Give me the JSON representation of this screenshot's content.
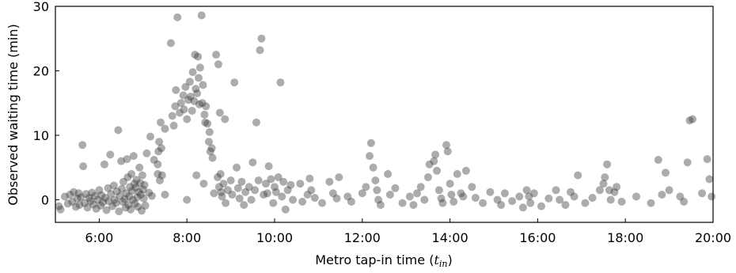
{
  "chart_data": {
    "type": "scatter",
    "title": "",
    "xlabel_prefix": "Metro tap-in time (",
    "xlabel_var": "t",
    "xlabel_sub": "in",
    "xlabel_suffix": ")",
    "ylabel": "Observed waiting time (min)",
    "xlim": [
      "5:00",
      "20:00"
    ],
    "ylim": [
      -3.5,
      30
    ],
    "x_ticks": [
      "6:00",
      "8:00",
      "10:00",
      "12:00",
      "14:00",
      "16:00",
      "18:00",
      "20:00"
    ],
    "y_ticks": [
      "0",
      "10",
      "20",
      "30"
    ],
    "grid": false,
    "legend": "none",
    "point_color": "#3a3a3a",
    "points": [
      [
        "5:05",
        -1.0
      ],
      [
        "5:07",
        -1.5
      ],
      [
        "5:13",
        0.5
      ],
      [
        "5:17",
        -0.6
      ],
      [
        "5:20",
        0.8
      ],
      [
        "5:23",
        -0.3
      ],
      [
        "5:25",
        1.2
      ],
      [
        "5:28",
        -1.1
      ],
      [
        "5:30",
        0.2
      ],
      [
        "5:32",
        1.0
      ],
      [
        "5:33",
        -0.8
      ],
      [
        "5:35",
        0.4
      ],
      [
        "5:37",
        8.5
      ],
      [
        "5:38",
        5.2
      ],
      [
        "5:40",
        -0.5
      ],
      [
        "5:42",
        0.9
      ],
      [
        "5:44",
        -1.2
      ],
      [
        "5:46",
        0.3
      ],
      [
        "5:48",
        -0.2
      ],
      [
        "5:50",
        1.1
      ],
      [
        "5:52",
        -0.7
      ],
      [
        "5:54",
        0.6
      ],
      [
        "5:56",
        -1.4
      ],
      [
        "5:58",
        0.0
      ],
      [
        "6:00",
        1.5
      ],
      [
        "6:02",
        -0.9
      ],
      [
        "6:03",
        0.7
      ],
      [
        "6:05",
        -0.4
      ],
      [
        "6:07",
        5.5
      ],
      [
        "6:08",
        0.3
      ],
      [
        "6:10",
        -1.6
      ],
      [
        "6:12",
        1.8
      ],
      [
        "6:13",
        -0.2
      ],
      [
        "6:15",
        7.0
      ],
      [
        "6:16",
        0.9
      ],
      [
        "6:18",
        -1.0
      ],
      [
        "6:20",
        2.2
      ],
      [
        "6:21",
        0.0
      ],
      [
        "6:23",
        -0.5
      ],
      [
        "6:24",
        1.3
      ],
      [
        "6:26",
        10.8
      ],
      [
        "6:27",
        -1.8
      ],
      [
        "6:28",
        0.6
      ],
      [
        "6:30",
        6.0
      ],
      [
        "6:31",
        1.7
      ],
      [
        "6:32",
        -0.3
      ],
      [
        "6:33",
        2.8
      ],
      [
        "6:35",
        0.1
      ],
      [
        "6:36",
        -1.2
      ],
      [
        "6:37",
        1.0
      ],
      [
        "6:38",
        6.3
      ],
      [
        "6:39",
        3.5
      ],
      [
        "6:40",
        -0.8
      ],
      [
        "6:41",
        0.5
      ],
      [
        "6:42",
        2.0
      ],
      [
        "6:43",
        -1.5
      ],
      [
        "6:44",
        4.0
      ],
      [
        "6:45",
        1.4
      ],
      [
        "6:46",
        0.0
      ],
      [
        "6:47",
        6.8
      ],
      [
        "6:48",
        2.5
      ],
      [
        "6:49",
        -0.6
      ],
      [
        "6:50",
        1.9
      ],
      [
        "6:51",
        3.1
      ],
      [
        "6:52",
        0.4
      ],
      [
        "6:53",
        -1.1
      ],
      [
        "6:54",
        1.2
      ],
      [
        "6:55",
        5.0
      ],
      [
        "6:56",
        2.6
      ],
      [
        "6:57",
        0.8
      ],
      [
        "6:58",
        -1.7
      ],
      [
        "6:59",
        3.8
      ],
      [
        "7:00",
        1.6
      ],
      [
        "7:01",
        0.2
      ],
      [
        "7:02",
        2.3
      ],
      [
        "7:03",
        -0.9
      ],
      [
        "7:05",
        7.2
      ],
      [
        "7:08",
        1.1
      ],
      [
        "7:10",
        9.8
      ],
      [
        "7:12",
        0.6
      ],
      [
        "7:15",
        6.2
      ],
      [
        "7:20",
        4.0
      ],
      [
        "7:20",
        5.5
      ],
      [
        "7:21",
        7.5
      ],
      [
        "7:22",
        9.0
      ],
      [
        "7:23",
        3.0
      ],
      [
        "7:24",
        12.0
      ],
      [
        "7:25",
        8.0
      ],
      [
        "7:26",
        3.8
      ],
      [
        "7:30",
        11.0
      ],
      [
        "7:30",
        0.8
      ],
      [
        "7:38",
        24.3
      ],
      [
        "7:40",
        13.0
      ],
      [
        "7:42",
        11.5
      ],
      [
        "7:44",
        14.5
      ],
      [
        "7:45",
        17.0
      ],
      [
        "7:47",
        28.3
      ],
      [
        "7:50",
        13.5
      ],
      [
        "7:52",
        15.0
      ],
      [
        "7:55",
        16.2
      ],
      [
        "7:56",
        14.0
      ],
      [
        "7:58",
        17.5
      ],
      [
        "8:00",
        12.5
      ],
      [
        "8:00",
        0.0
      ],
      [
        "8:02",
        15.5
      ],
      [
        "8:04",
        18.3
      ],
      [
        "8:05",
        16.0
      ],
      [
        "8:07",
        13.8
      ],
      [
        "8:08",
        19.8
      ],
      [
        "8:10",
        15.3
      ],
      [
        "8:11",
        22.5
      ],
      [
        "8:12",
        17.2
      ],
      [
        "8:13",
        3.8
      ],
      [
        "8:14",
        16.5
      ],
      [
        "8:15",
        22.2
      ],
      [
        "8:16",
        18.9
      ],
      [
        "8:17",
        14.8
      ],
      [
        "8:18",
        20.5
      ],
      [
        "8:20",
        28.6
      ],
      [
        "8:21",
        15.0
      ],
      [
        "8:22",
        17.8
      ],
      [
        "8:23",
        2.5
      ],
      [
        "8:24",
        13.2
      ],
      [
        "8:25",
        12.0
      ],
      [
        "8:26",
        14.5
      ],
      [
        "8:28",
        11.8
      ],
      [
        "8:30",
        9.0
      ],
      [
        "8:31",
        10.5
      ],
      [
        "8:32",
        7.5
      ],
      [
        "8:34",
        8.0
      ],
      [
        "8:35",
        6.5
      ],
      [
        "8:37",
        1.0
      ],
      [
        "8:40",
        22.5
      ],
      [
        "8:42",
        3.5
      ],
      [
        "8:43",
        21.0
      ],
      [
        "8:44",
        2.0
      ],
      [
        "8:45",
        13.5
      ],
      [
        "8:46",
        4.0
      ],
      [
        "8:47",
        1.2
      ],
      [
        "8:48",
        0.5
      ],
      [
        "8:50",
        2.5
      ],
      [
        "8:52",
        12.5
      ],
      [
        "8:53",
        -0.5
      ],
      [
        "8:56",
        1.5
      ],
      [
        "9:00",
        3.0
      ],
      [
        "9:02",
        0.8
      ],
      [
        "9:05",
        18.2
      ],
      [
        "9:08",
        5.0
      ],
      [
        "9:10",
        1.8
      ],
      [
        "9:12",
        0.2
      ],
      [
        "9:15",
        2.8
      ],
      [
        "9:18",
        -0.8
      ],
      [
        "9:20",
        1.2
      ],
      [
        "9:25",
        2.0
      ],
      [
        "9:28",
        0.0
      ],
      [
        "9:30",
        5.8
      ],
      [
        "9:33",
        1.5
      ],
      [
        "9:35",
        12.0
      ],
      [
        "9:38",
        3.0
      ],
      [
        "9:40",
        23.2
      ],
      [
        "9:42",
        25.0
      ],
      [
        "9:45",
        0.8
      ],
      [
        "9:48",
        2.5
      ],
      [
        "9:50",
        1.0
      ],
      [
        "9:52",
        5.2
      ],
      [
        "9:55",
        3.2
      ],
      [
        "9:58",
        -0.5
      ],
      [
        "10:00",
        2.0
      ],
      [
        "10:02",
        1.2
      ],
      [
        "10:05",
        3.5
      ],
      [
        "10:08",
        18.2
      ],
      [
        "10:10",
        0.5
      ],
      [
        "10:12",
        2.8
      ],
      [
        "10:15",
        -1.5
      ],
      [
        "10:18",
        1.5
      ],
      [
        "10:22",
        2.3
      ],
      [
        "10:25",
        0.0
      ],
      [
        "10:35",
        2.5
      ],
      [
        "10:38",
        -0.3
      ],
      [
        "10:45",
        0.8
      ],
      [
        "10:48",
        3.3
      ],
      [
        "10:50",
        1.5
      ],
      [
        "10:55",
        0.3
      ],
      [
        "11:05",
        -0.5
      ],
      [
        "11:15",
        2.8
      ],
      [
        "11:20",
        1.0
      ],
      [
        "11:25",
        0.2
      ],
      [
        "11:28",
        3.5
      ],
      [
        "11:40",
        0.5
      ],
      [
        "11:45",
        -0.3
      ],
      [
        "12:00",
        1.0
      ],
      [
        "12:05",
        2.0
      ],
      [
        "12:10",
        6.8
      ],
      [
        "12:12",
        8.8
      ],
      [
        "12:15",
        5.0
      ],
      [
        "12:18",
        3.0
      ],
      [
        "12:20",
        1.5
      ],
      [
        "12:22",
        0.0
      ],
      [
        "12:25",
        -0.8
      ],
      [
        "12:35",
        4.0
      ],
      [
        "12:38",
        0.8
      ],
      [
        "12:45",
        1.8
      ],
      [
        "12:55",
        -0.5
      ],
      [
        "13:05",
        0.5
      ],
      [
        "13:10",
        -0.8
      ],
      [
        "13:15",
        1.0
      ],
      [
        "13:20",
        2.0
      ],
      [
        "13:25",
        0.0
      ],
      [
        "13:30",
        3.5
      ],
      [
        "13:32",
        5.5
      ],
      [
        "13:38",
        6.0
      ],
      [
        "13:40",
        7.0
      ],
      [
        "13:42",
        4.5
      ],
      [
        "13:45",
        1.5
      ],
      [
        "13:48",
        0.2
      ],
      [
        "13:50",
        -0.5
      ],
      [
        "13:55",
        8.5
      ],
      [
        "13:57",
        7.5
      ],
      [
        "14:00",
        2.5
      ],
      [
        "14:02",
        0.8
      ],
      [
        "14:05",
        -0.3
      ],
      [
        "14:10",
        4.0
      ],
      [
        "14:15",
        1.0
      ],
      [
        "14:18",
        0.5
      ],
      [
        "14:22",
        4.5
      ],
      [
        "14:30",
        2.0
      ],
      [
        "14:35",
        0.3
      ],
      [
        "14:45",
        -0.5
      ],
      [
        "14:55",
        1.2
      ],
      [
        "15:05",
        0.0
      ],
      [
        "15:10",
        -0.8
      ],
      [
        "15:15",
        1.0
      ],
      [
        "15:25",
        -0.2
      ],
      [
        "15:35",
        0.5
      ],
      [
        "15:40",
        -1.2
      ],
      [
        "15:45",
        1.5
      ],
      [
        "15:48",
        0.5
      ],
      [
        "15:50",
        -0.5
      ],
      [
        "15:55",
        1.0
      ],
      [
        "16:05",
        -1.0
      ],
      [
        "16:15",
        0.2
      ],
      [
        "16:25",
        1.5
      ],
      [
        "16:30",
        0.0
      ],
      [
        "16:38",
        -0.8
      ],
      [
        "16:45",
        1.2
      ],
      [
        "16:50",
        0.5
      ],
      [
        "16:55",
        3.8
      ],
      [
        "17:05",
        -0.5
      ],
      [
        "17:15",
        0.3
      ],
      [
        "17:25",
        1.5
      ],
      [
        "17:30",
        2.5
      ],
      [
        "17:32",
        3.5
      ],
      [
        "17:35",
        5.5
      ],
      [
        "17:38",
        1.5
      ],
      [
        "17:40",
        0.0
      ],
      [
        "17:45",
        1.2
      ],
      [
        "17:48",
        2.0
      ],
      [
        "17:55",
        -0.3
      ],
      [
        "18:15",
        0.5
      ],
      [
        "18:35",
        -0.5
      ],
      [
        "18:45",
        6.2
      ],
      [
        "18:50",
        0.8
      ],
      [
        "18:55",
        4.2
      ],
      [
        "19:00",
        1.5
      ],
      [
        "19:15",
        0.5
      ],
      [
        "19:20",
        -0.3
      ],
      [
        "19:25",
        5.8
      ],
      [
        "19:28",
        12.3
      ],
      [
        "19:32",
        12.5
      ],
      [
        "19:45",
        1.0
      ],
      [
        "19:52",
        6.3
      ],
      [
        "19:55",
        3.2
      ],
      [
        "19:58",
        0.5
      ]
    ]
  }
}
